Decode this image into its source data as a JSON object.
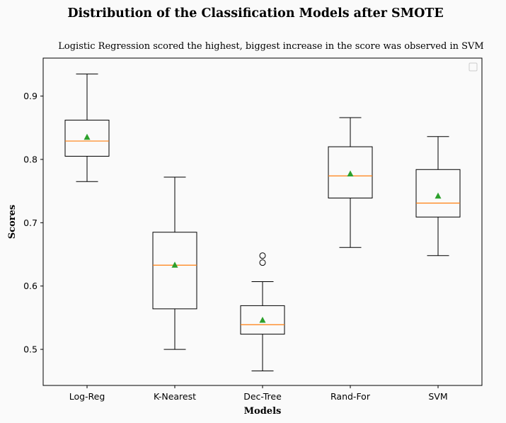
{
  "chart_data": {
    "type": "box",
    "title": "Distribution of the Classification Models after SMOTE",
    "subtitle": "Logistic Regression scored the highest, biggest increase in the score was observed in SVM",
    "xlabel": "Models",
    "ylabel": "Scores",
    "ylim": [
      0.443,
      0.96
    ],
    "yticks": [
      "0.5",
      "0.6",
      "0.7",
      "0.8",
      "0.9"
    ],
    "ytick_values": [
      0.5,
      0.6,
      0.7,
      0.8,
      0.9
    ],
    "categories": [
      "Log-Reg",
      "K-Nearest",
      "Dec-Tree",
      "Rand-For",
      "SVM"
    ],
    "boxes": [
      {
        "category": "Log-Reg",
        "whisker_low": 0.765,
        "q1": 0.805,
        "median": 0.829,
        "q3": 0.862,
        "whisker_high": 0.935,
        "mean": 0.835,
        "outliers": []
      },
      {
        "category": "K-Nearest",
        "whisker_low": 0.5,
        "q1": 0.564,
        "median": 0.633,
        "q3": 0.685,
        "whisker_high": 0.772,
        "mean": 0.633,
        "outliers": []
      },
      {
        "category": "Dec-Tree",
        "whisker_low": 0.466,
        "q1": 0.524,
        "median": 0.539,
        "q3": 0.569,
        "whisker_high": 0.607,
        "mean": 0.546,
        "outliers": [
          0.637,
          0.648
        ]
      },
      {
        "category": "Rand-For",
        "whisker_low": 0.661,
        "q1": 0.739,
        "median": 0.774,
        "q3": 0.82,
        "whisker_high": 0.866,
        "mean": 0.777,
        "outliers": []
      },
      {
        "category": "SVM",
        "whisker_low": 0.648,
        "q1": 0.709,
        "median": 0.731,
        "q3": 0.784,
        "whisker_high": 0.836,
        "mean": 0.742,
        "outliers": []
      }
    ],
    "legend": {
      "placement": "top-right",
      "entries": []
    },
    "grid": false,
    "colors": {
      "box": "#000000",
      "median": "#ff7f0e",
      "mean": "#2ca02c",
      "background": "#fafafa",
      "plot_background": "#fafafa"
    }
  }
}
